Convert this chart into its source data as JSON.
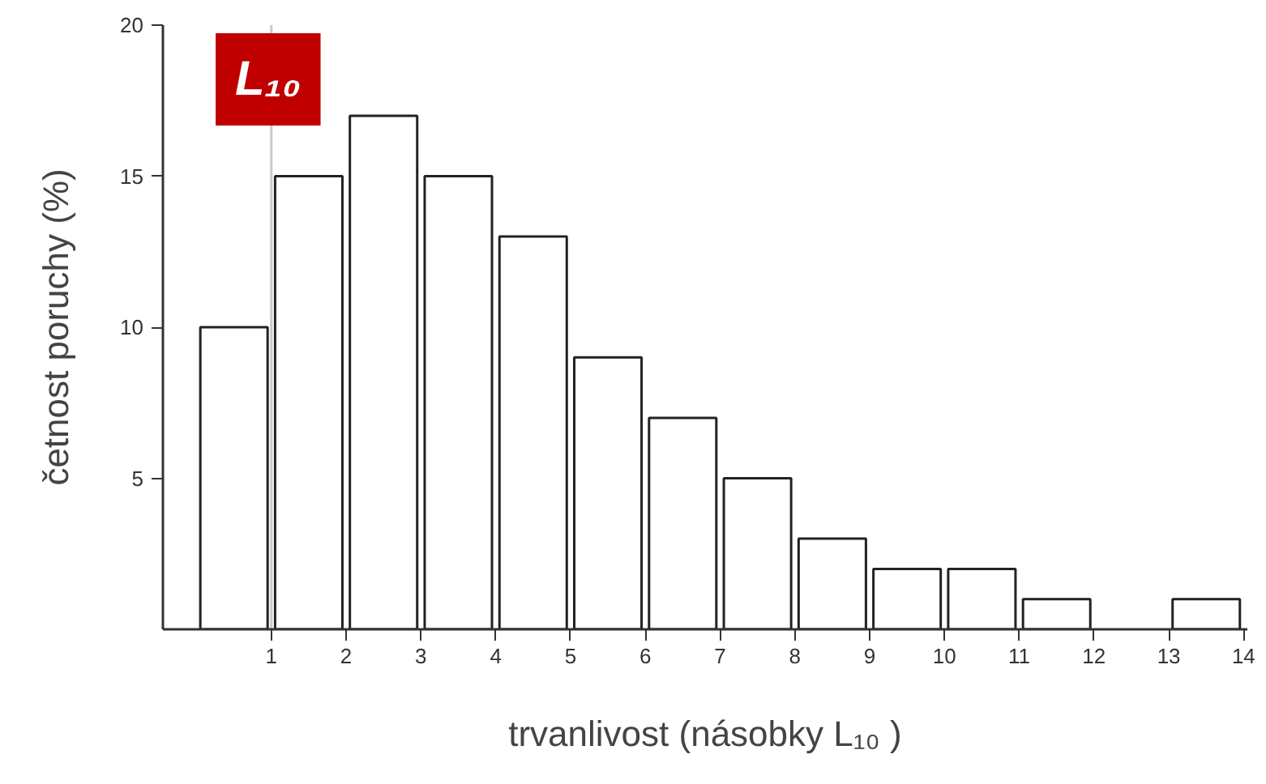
{
  "chart_data": {
    "type": "histogram",
    "xlabel": "trvanlivost (násobky L₁₀ )",
    "ylabel": "četnost poruchy (%)",
    "bins": [
      0,
      1,
      2,
      3,
      4,
      5,
      6,
      7,
      8,
      9,
      10,
      11,
      12,
      13,
      14
    ],
    "values": [
      10,
      15,
      17,
      15,
      13,
      9,
      7,
      5,
      3,
      2,
      2,
      1,
      0,
      1
    ],
    "color": "#ffffff",
    "xlim": [
      -0.45,
      14.05
    ],
    "xticks": [
      1,
      2,
      3,
      4,
      5,
      6,
      7,
      8,
      9,
      10,
      11,
      12,
      13,
      14
    ],
    "ylim": [
      0,
      20
    ],
    "yticks": [
      5,
      10,
      15,
      20
    ],
    "grid": false,
    "ref_lines": [
      {
        "axis": "x",
        "value": 1,
        "label": "L₁₀",
        "color": "#c8c8c8"
      }
    ]
  }
}
